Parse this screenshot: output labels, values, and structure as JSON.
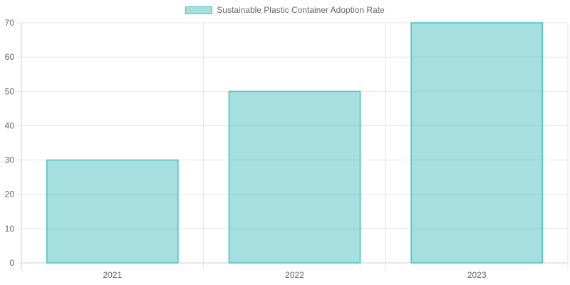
{
  "chart_data": {
    "type": "bar",
    "categories": [
      "2021",
      "2022",
      "2023"
    ],
    "series": [
      {
        "name": "Sustainable Plastic Container Adoption Rate",
        "values": [
          30,
          50,
          70
        ]
      }
    ],
    "ylim": [
      0,
      70
    ],
    "yticks": [
      0,
      10,
      20,
      30,
      40,
      50,
      60,
      70
    ],
    "grid": true,
    "legend": "top-center",
    "colors": {
      "bar_fill": "rgba(75, 192, 192, 0.5)",
      "bar_border": "#4bc0c0",
      "grid": "#e5e5e5",
      "axis": "#cfcfcf",
      "text": "#666666"
    }
  }
}
